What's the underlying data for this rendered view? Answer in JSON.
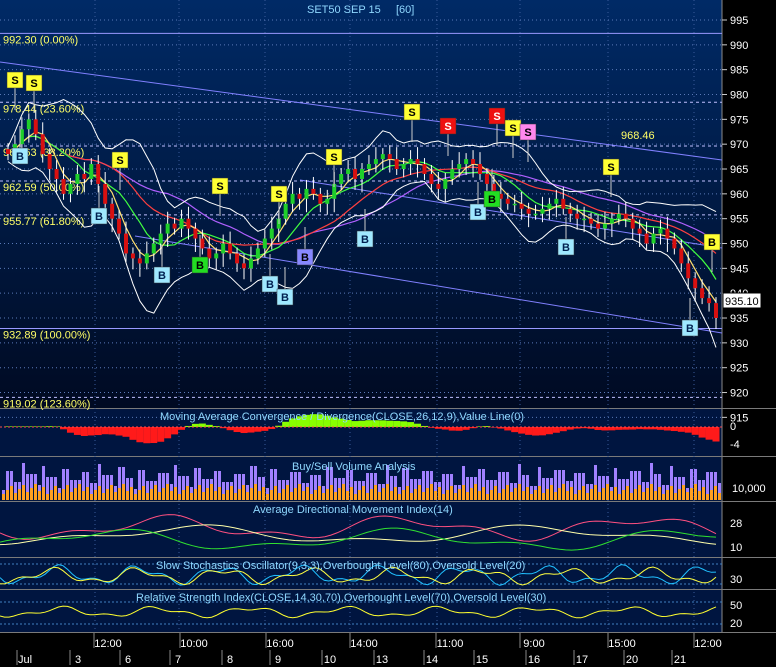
{
  "chart_data": {
    "type": "candlestick",
    "title": "SET50 SEP 15",
    "interval": "[60]",
    "last_price": "935.10",
    "annotation_high": "968.46",
    "colors": {
      "background_top": "#002a66",
      "background_bottom": "#000a22",
      "grid": "#5a7ab8",
      "axis_text": "#ffffff",
      "fib_text": "#ffff66",
      "up": "#1fcf2a",
      "down": "#d81010",
      "buy_marker": "#9fe8ff",
      "buy_marker_alt": "#22dd22",
      "sell_marker": "#ffff33",
      "sell_marker_alt": "#ee1111",
      "sell_marker_pink": "#ff88ee",
      "trend_line": "#8080ff",
      "ma_fast": "#ffe070",
      "ma_mid": "#ff4040",
      "ma_slow": "#40ff40",
      "bollinger": "#ffffff",
      "macd_pos": "#88ff00",
      "macd_neg": "#ff1a1a",
      "vol_buy": "#ffa020",
      "vol_sell": "#a080ff"
    },
    "price_axis": {
      "min": 905,
      "max": 1000,
      "ticks": [
        "995",
        "990",
        "985",
        "980",
        "975",
        "970",
        "965",
        "960",
        "955",
        "950",
        "945",
        "940",
        "935",
        "930",
        "925",
        "920",
        "915"
      ]
    },
    "fibonacci": [
      {
        "label": "992.30 (0.00%)",
        "value": 992.3
      },
      {
        "label": "978.44 (23.60%)",
        "value": 978.44
      },
      {
        "label": "969.63 (38.20%)",
        "value": 969.63
      },
      {
        "label": "962.59 (50.00%)",
        "value": 962.59
      },
      {
        "label": "955.77 (61.80%)",
        "value": 955.77
      },
      {
        "label": "932.89 (100.00%)",
        "value": 932.89
      },
      {
        "label": "919.02 (123.60%)",
        "value": 919.02
      }
    ],
    "close_series": [
      968,
      970,
      973,
      975,
      972,
      968,
      965,
      963,
      960,
      962,
      964,
      963,
      966,
      962,
      958,
      955,
      952,
      948,
      947,
      946,
      948,
      950,
      952,
      954,
      953,
      955,
      953,
      951,
      949,
      947,
      948,
      950,
      948,
      946,
      945,
      947,
      949,
      951,
      953,
      955,
      958,
      960,
      959,
      961,
      960,
      958,
      959,
      962,
      964,
      965,
      963,
      965,
      966,
      967,
      968,
      967,
      965,
      966,
      967,
      966,
      964,
      962,
      961,
      963,
      965,
      966,
      967,
      966,
      964,
      962,
      960,
      959,
      958,
      958,
      957,
      956,
      956,
      957,
      958,
      959,
      957,
      956,
      955,
      955,
      954,
      953,
      954,
      955,
      956,
      955,
      953,
      952,
      950,
      952,
      953,
      951,
      949,
      946,
      943,
      941,
      939,
      938,
      935
    ],
    "markers": [
      {
        "label": "S"
      },
      {
        "label": "S"
      },
      {
        "label": "S"
      },
      {
        "label": "S"
      },
      {
        "label": "S"
      },
      {
        "label": "S"
      },
      {
        "label": "S"
      },
      {
        "label": "S"
      },
      {
        "label": "S"
      },
      {
        "label": "S"
      },
      {
        "label": "S"
      },
      {
        "label": "S"
      },
      {
        "label": "B"
      },
      {
        "label": "B"
      },
      {
        "label": "B"
      },
      {
        "label": "B"
      },
      {
        "label": "B"
      },
      {
        "label": "B"
      },
      {
        "label": "B"
      },
      {
        "label": "B"
      },
      {
        "label": "B"
      },
      {
        "label": "B"
      },
      {
        "label": "B"
      },
      {
        "label": "B"
      }
    ],
    "panels": {
      "macd": {
        "title": "Moving Average Convergence / Divergence(CLOSE,26,12,9),Value Line(0)",
        "ticks": [
          "0",
          "-4"
        ]
      },
      "volume": {
        "title": "Buy/Sell Volume Analysis",
        "ticks": [
          "10,000"
        ]
      },
      "adx": {
        "title": "Average Directional Movement Index(14)",
        "ticks": [
          "28",
          "10"
        ]
      },
      "stoch": {
        "title": "Slow Stochastics Oscillator(9,3,3),Overbought Level(80),Oversold Level(20)",
        "ticks": [
          "30"
        ]
      },
      "rsi": {
        "title": "Relative Strength Index(CLOSE,14,30,70),Overbought Level(70),Oversold Level(30)",
        "ticks": [
          "50",
          "20"
        ]
      }
    },
    "x_axis": {
      "time_labels": [
        "12:00",
        "10:00",
        "16:00",
        "14:00",
        "11:00",
        "9:00",
        "15:00",
        "12:00"
      ],
      "day_labels": [
        "Jul",
        "3",
        "6",
        "7",
        "8",
        "9",
        "10",
        "13",
        "14",
        "15",
        "16",
        "17",
        "20",
        "21"
      ]
    }
  }
}
